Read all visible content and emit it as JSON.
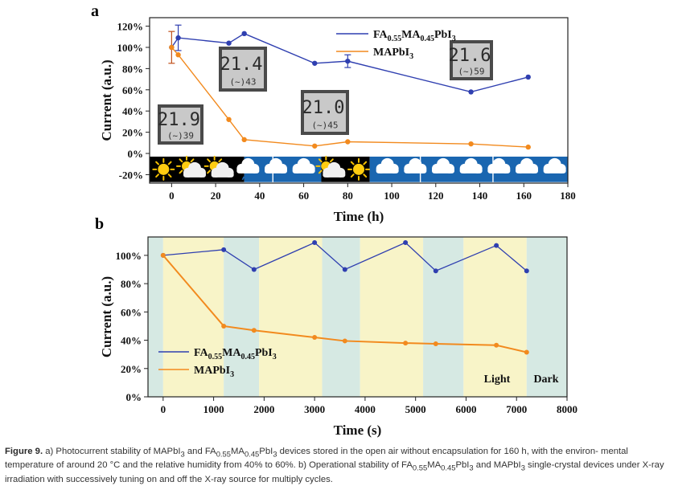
{
  "chart_data": [
    {
      "type": "line",
      "panel": "a",
      "xlabel": "Time (h)",
      "ylabel": "Current (a.u.)",
      "xlim": [
        -10,
        180
      ],
      "ylim": [
        -28,
        128
      ],
      "xticks": [
        "0",
        "20",
        "40",
        "60",
        "80",
        "100",
        "120",
        "140",
        "160",
        "180"
      ],
      "yticks": [
        "-20%",
        "0%",
        "20%",
        "40%",
        "60%",
        "80%",
        "100%",
        "120%"
      ],
      "legend_position": "top-right",
      "grid": false,
      "series": [
        {
          "name": "FA0.55MA0.45PbI3",
          "name_base": "FA",
          "sub1": "0.55",
          "mid": "MA",
          "sub2": "0.45",
          "tail": "PbI",
          "sub3": "3",
          "color": "#2f3fb0",
          "x": [
            0,
            3,
            26,
            33,
            65,
            80,
            136,
            162
          ],
          "y": [
            100,
            109,
            104,
            113,
            85,
            87,
            58,
            72
          ],
          "err": [
            0,
            12,
            0,
            0,
            0,
            6,
            0,
            0
          ]
        },
        {
          "name": "MAPbI3",
          "name_base": "MAPbI",
          "sub3": "3",
          "color": "#f28a1e",
          "x": [
            0,
            3,
            26,
            33,
            65,
            80,
            136,
            162
          ],
          "y": [
            100,
            93,
            32,
            13,
            7,
            11,
            9,
            6
          ],
          "err": [
            15,
            0,
            0,
            0,
            0,
            0,
            0,
            0
          ]
        }
      ],
      "humidity_displays": [
        {
          "temp": "21.9",
          "rh": "(~)39"
        },
        {
          "temp": "21.4",
          "rh": "(~)43"
        },
        {
          "temp": "21.0",
          "rh": "(~)45"
        },
        {
          "temp": "21.6",
          "rh": "(~)59"
        }
      ],
      "weather_strip": [
        "sun",
        "sun-cloud",
        "sun-cloud",
        "rain",
        "rain",
        "rain",
        "sun-cloud",
        "sun",
        "rain",
        "rain",
        "rain",
        "rain",
        "rain",
        "rain",
        "rain"
      ]
    },
    {
      "type": "line",
      "panel": "b",
      "xlabel": "Time (s)",
      "ylabel": "Current (a.u.)",
      "xlim": [
        -300,
        8000
      ],
      "ylim": [
        0,
        113
      ],
      "xticks": [
        "0",
        "1000",
        "2000",
        "3000",
        "4000",
        "5000",
        "6000",
        "7000",
        "8000"
      ],
      "yticks": [
        "0%",
        "20%",
        "40%",
        "60%",
        "80%",
        "100%"
      ],
      "legend_position": "bottom-left",
      "grid": false,
      "annotations": [
        "Light",
        "Dark"
      ],
      "series": [
        {
          "name": "FA0.55MA0.45PbI3",
          "name_base": "FA",
          "sub1": "0.55",
          "mid": "MA",
          "sub2": "0.45",
          "tail": "PbI",
          "sub3": "3",
          "color": "#2f3fb0",
          "x": [
            0,
            1200,
            1800,
            3000,
            3600,
            4800,
            5400,
            6600,
            7200
          ],
          "y": [
            100,
            104,
            90,
            109,
            90,
            109,
            89,
            107,
            89
          ]
        },
        {
          "name": "MAPbI3",
          "name_base": "MAPbI",
          "sub3": "3",
          "color": "#f28a1e",
          "x": [
            0,
            1200,
            1800,
            3000,
            3600,
            4800,
            5400,
            6600,
            7200
          ],
          "y": [
            100,
            50,
            47,
            42,
            39.5,
            38,
            37.5,
            36.5,
            31.5
          ]
        }
      ],
      "bands": [
        {
          "from": -300,
          "to": 0,
          "kind": "dark"
        },
        {
          "from": 0,
          "to": 1200,
          "kind": "light"
        },
        {
          "from": 1200,
          "to": 1900,
          "kind": "dark"
        },
        {
          "from": 1900,
          "to": 3150,
          "kind": "light"
        },
        {
          "from": 3150,
          "to": 3900,
          "kind": "dark"
        },
        {
          "from": 3900,
          "to": 5150,
          "kind": "light"
        },
        {
          "from": 5150,
          "to": 5950,
          "kind": "dark"
        },
        {
          "from": 5950,
          "to": 7200,
          "kind": "light"
        },
        {
          "from": 7200,
          "to": 8000,
          "kind": "dark"
        }
      ]
    }
  ],
  "labels": {
    "panel_a": "a",
    "panel_b": "b"
  },
  "colors": {
    "light_band": "#f8f4c8",
    "dark_band": "#d6e9e3",
    "blue_strip": "#1a66b0",
    "black_strip": "#000000"
  },
  "caption": {
    "fig": "Figure 9.",
    "line1": "a) Photocurrent stability of MAPbI",
    "line1b": " and FA",
    "line1c": "MA",
    "line1d": "PbI",
    "line1e": " devices stored in the open air without encapsulation for 160 h, with the environ-",
    "line2": "mental temperature of around 20 °C and the relative humidity from 40% to 60%. b) Operational stability of FA",
    "line2b": "MA",
    "line2c": "PbI",
    "line2d": " and MAPbI",
    "line2e": " single-crystal",
    "line3": "devices under X-ray irradiation with successively tuning on and off the X-ray source for multiply cycles.",
    "sub3": "3",
    "sub055": "0.55",
    "sub045": "0.45"
  }
}
